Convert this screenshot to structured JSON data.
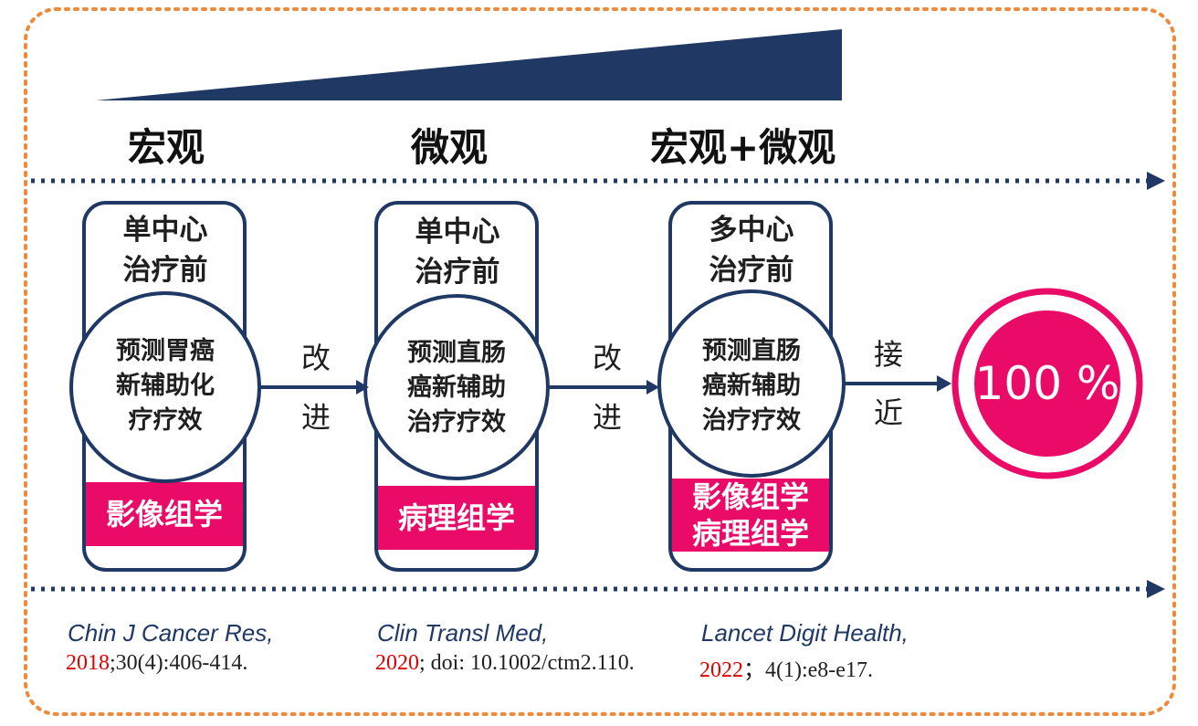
{
  "colors": {
    "accent": "#ea0a67",
    "navy": "#1f3864",
    "frame_border": "#ee8a3c",
    "year": "#e00000"
  },
  "phases": [
    "宏观",
    "微观",
    "宏观+微观"
  ],
  "cards": [
    {
      "title_lines": [
        "单中心",
        "治疗前"
      ],
      "circle_lines": [
        "预测胃癌",
        "新辅助化",
        "疗疗效"
      ],
      "tag_lines": [
        "影像组学"
      ]
    },
    {
      "title_lines": [
        "单中心",
        "治疗前"
      ],
      "circle_lines": [
        "预测直肠",
        "癌新辅助",
        "治疗疗效"
      ],
      "tag_lines": [
        "病理组学"
      ]
    },
    {
      "title_lines": [
        "多中心",
        "治疗前"
      ],
      "circle_lines": [
        "预测直肠",
        "癌新辅助",
        "治疗疗效"
      ],
      "tag_lines": [
        "影像组学",
        "病理组学"
      ]
    }
  ],
  "steps": [
    {
      "line1": "改",
      "line2": "进"
    },
    {
      "line1": "改",
      "line2": "进"
    },
    {
      "line1": "接",
      "line2": "近"
    }
  ],
  "target": {
    "label": "100 %"
  },
  "references": [
    {
      "journal": "Chin J Cancer Res,",
      "year": "2018",
      "rest": ";30(4):406-414."
    },
    {
      "journal": "Clin Transl Med,",
      "year": "2020",
      "rest": "; doi: 10.1002/ctm2.110."
    },
    {
      "journal": "Lancet Digit  Health,",
      "year": "2022",
      "rest": "；4(1):e8-e17."
    }
  ]
}
